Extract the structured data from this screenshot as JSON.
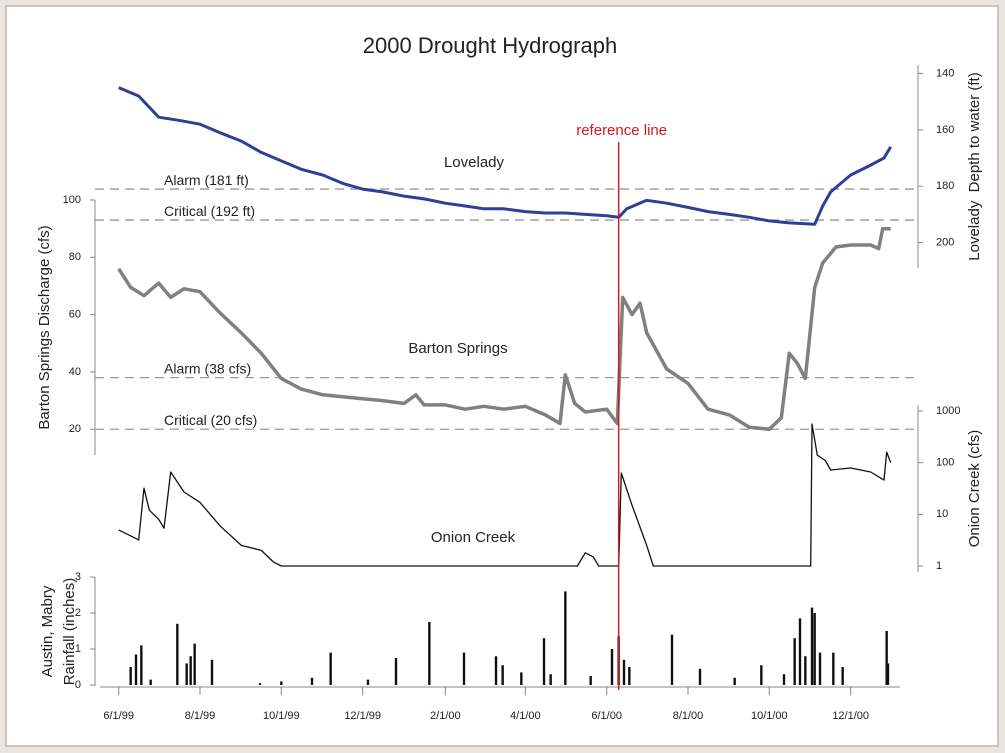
{
  "title": "2000 Drought Hydrograph",
  "reference_line": {
    "label": "reference line",
    "x": "2000-06-10"
  },
  "x_axis": {
    "xlim": [
      "1999-05-18",
      "2001-01-07"
    ],
    "xticks": [
      {
        "value": "1999-06-01",
        "label": "6/1/99"
      },
      {
        "value": "1999-08-01",
        "label": "8/1/99"
      },
      {
        "value": "1999-10-01",
        "label": "10/1/99"
      },
      {
        "value": "1999-12-01",
        "label": "12/1/99"
      },
      {
        "value": "2000-02-01",
        "label": "2/1/00"
      },
      {
        "value": "2000-04-01",
        "label": "4/1/00"
      },
      {
        "value": "2000-06-01",
        "label": "6/1/00"
      },
      {
        "value": "2000-08-01",
        "label": "8/1/00"
      },
      {
        "value": "2000-10-01",
        "label": "10/1/00"
      },
      {
        "value": "2000-12-01",
        "label": "12/1/00"
      }
    ]
  },
  "chart_data": [
    {
      "type": "line",
      "name": "Lovelady",
      "ylabel": "Lovelady  Depth to water (ft)",
      "color": "#2e3f97",
      "axis_side": "right",
      "ylim": [
        209,
        137
      ],
      "yticks": [
        140,
        160,
        180,
        200
      ],
      "thresholds": [
        {
          "label": "Alarm (181 ft)",
          "value": 181
        },
        {
          "label": "Critical (192 ft)",
          "value": 192
        }
      ],
      "x": [
        "1999-06-01",
        "1999-06-16",
        "1999-06-22",
        "1999-07-01",
        "1999-07-16",
        "1999-08-01",
        "1999-08-16",
        "1999-09-01",
        "1999-09-16",
        "1999-10-01",
        "1999-10-16",
        "1999-11-01",
        "1999-11-16",
        "1999-12-01",
        "1999-12-16",
        "2000-01-01",
        "2000-01-16",
        "2000-02-01",
        "2000-02-16",
        "2000-03-01",
        "2000-03-16",
        "2000-04-01",
        "2000-04-16",
        "2000-05-01",
        "2000-05-16",
        "2000-06-01",
        "2000-06-10",
        "2000-06-16",
        "2000-07-01",
        "2000-07-16",
        "2000-08-01",
        "2000-08-16",
        "2000-09-01",
        "2000-09-16",
        "2000-10-01",
        "2000-10-16",
        "2000-11-04",
        "2000-11-10",
        "2000-11-16",
        "2000-12-01",
        "2000-12-16",
        "2000-12-26",
        "2000-12-31"
      ],
      "values": [
        145,
        148,
        151,
        155.5,
        156.6,
        158,
        161,
        164,
        168,
        171,
        174,
        176,
        179,
        181,
        182,
        183.5,
        184.5,
        186,
        187,
        188,
        188,
        189,
        189.5,
        189.5,
        190,
        190.5,
        191,
        188,
        185,
        186,
        187.5,
        189,
        190,
        191,
        192.3,
        193,
        193.5,
        187,
        182,
        176,
        172.5,
        170,
        166
      ]
    },
    {
      "type": "line",
      "name": "Barton Springs",
      "ylabel": "Barton Springs Discharge (cfs)",
      "color": "#808080",
      "axis_side": "left",
      "ylim": [
        11,
        100
      ],
      "yticks": [
        20,
        40,
        60,
        80,
        100
      ],
      "thresholds": [
        {
          "label": "Alarm (38 cfs)",
          "value": 38
        },
        {
          "label": "Critical (20 cfs)",
          "value": 20
        }
      ],
      "x": [
        "1999-06-01",
        "1999-06-10",
        "1999-06-20",
        "1999-07-01",
        "1999-07-10",
        "1999-07-20",
        "1999-08-01",
        "1999-08-16",
        "1999-09-01",
        "1999-09-16",
        "1999-10-01",
        "1999-10-16",
        "1999-11-01",
        "1999-11-16",
        "1999-12-01",
        "1999-12-16",
        "2000-01-01",
        "2000-01-10",
        "2000-01-16",
        "2000-02-01",
        "2000-02-16",
        "2000-03-01",
        "2000-03-16",
        "2000-04-01",
        "2000-04-16",
        "2000-04-27",
        "2000-05-01",
        "2000-05-08",
        "2000-05-16",
        "2000-06-01",
        "2000-06-09",
        "2000-06-13",
        "2000-06-20",
        "2000-06-26",
        "2000-07-01",
        "2000-07-16",
        "2000-08-01",
        "2000-08-16",
        "2000-09-01",
        "2000-09-16",
        "2000-10-01",
        "2000-10-10",
        "2000-10-16",
        "2000-10-22",
        "2000-10-28",
        "2000-11-04",
        "2000-11-10",
        "2000-11-20",
        "2000-12-01",
        "2000-12-16",
        "2000-12-22",
        "2000-12-25",
        "2000-12-31"
      ],
      "values": [
        76,
        69.5,
        66.6,
        71,
        66,
        69,
        68,
        60.6,
        53.6,
        46.5,
        37.7,
        34,
        32,
        31.3,
        30.6,
        30,
        29,
        32,
        28.5,
        28.5,
        27,
        28,
        27,
        28,
        25,
        22,
        39,
        29,
        26,
        27,
        22,
        66,
        60,
        64,
        53.6,
        41,
        36,
        27,
        25,
        20.7,
        20,
        24,
        46.5,
        43,
        37.7,
        69.5,
        78,
        83.6,
        84.3,
        84.3,
        83,
        90,
        90
      ]
    },
    {
      "type": "line",
      "name": "Onion Creek",
      "ylabel": "Onion Creek (cfs)",
      "color": "#111111",
      "axis_side": "right",
      "log_y": true,
      "ylim": [
        1,
        1000
      ],
      "yticks": [
        1,
        10,
        100,
        1000
      ],
      "x": [
        "1999-06-01",
        "1999-06-16",
        "1999-06-20",
        "1999-06-24",
        "1999-07-01",
        "1999-07-05",
        "1999-07-10",
        "1999-07-20",
        "1999-08-01",
        "1999-08-16",
        "1999-09-01",
        "1999-09-16",
        "1999-09-25",
        "1999-10-01",
        "2000-05-10",
        "2000-05-16",
        "2000-05-22",
        "2000-05-26",
        "2000-06-10",
        "2000-06-12",
        "2000-06-20",
        "2000-07-01",
        "2000-07-06",
        "2000-11-01",
        "2000-11-02",
        "2000-11-06",
        "2000-11-12",
        "2000-11-16",
        "2000-12-01",
        "2000-12-16",
        "2000-12-26",
        "2000-12-28",
        "2000-12-31"
      ],
      "values": [
        5,
        3.2,
        32,
        12,
        8,
        5.4,
        66,
        27,
        17,
        6,
        2.5,
        2,
        1.2,
        1,
        1,
        1.8,
        1.5,
        1,
        1,
        63,
        15,
        2.5,
        1,
        1,
        560,
        140,
        110,
        72,
        79,
        66,
        46,
        160,
        100
      ]
    },
    {
      "type": "bar",
      "ylabel": [
        "Austin, Mabry",
        "Rainfall (inches)"
      ],
      "color": "#111111",
      "axis_side": "left",
      "ylim": [
        0,
        3
      ],
      "yticks": [
        0,
        1,
        2,
        3
      ],
      "x": [
        "1999-06-10",
        "1999-06-14",
        "1999-06-18",
        "1999-06-25",
        "1999-07-15",
        "1999-07-22",
        "1999-07-25",
        "1999-07-28",
        "1999-08-10",
        "1999-09-15",
        "1999-10-01",
        "1999-10-24",
        "1999-11-07",
        "1999-12-05",
        "1999-12-26",
        "2000-01-20",
        "2000-02-15",
        "2000-03-10",
        "2000-03-15",
        "2000-03-29",
        "2000-04-15",
        "2000-04-20",
        "2000-05-01",
        "2000-05-20",
        "2000-06-05",
        "2000-06-10",
        "2000-06-14",
        "2000-06-18",
        "2000-07-20",
        "2000-08-10",
        "2000-09-05",
        "2000-09-25",
        "2000-10-12",
        "2000-10-20",
        "2000-10-24",
        "2000-10-28",
        "2000-11-02",
        "2000-11-04",
        "2000-11-08",
        "2000-11-18",
        "2000-11-25",
        "2000-12-28",
        "2000-12-29"
      ],
      "values": [
        0.5,
        0.85,
        1.1,
        0.15,
        1.7,
        0.6,
        0.8,
        1.15,
        0.7,
        0.05,
        0.1,
        0.2,
        0.9,
        0.15,
        0.75,
        1.75,
        0.9,
        0.8,
        0.55,
        0.35,
        1.3,
        0.3,
        2.6,
        0.25,
        1.0,
        1.35,
        0.7,
        0.5,
        1.4,
        0.45,
        0.2,
        0.55,
        0.3,
        1.3,
        1.85,
        0.8,
        2.15,
        2.0,
        0.9,
        0.9,
        0.5,
        1.5,
        0.6
      ]
    }
  ]
}
